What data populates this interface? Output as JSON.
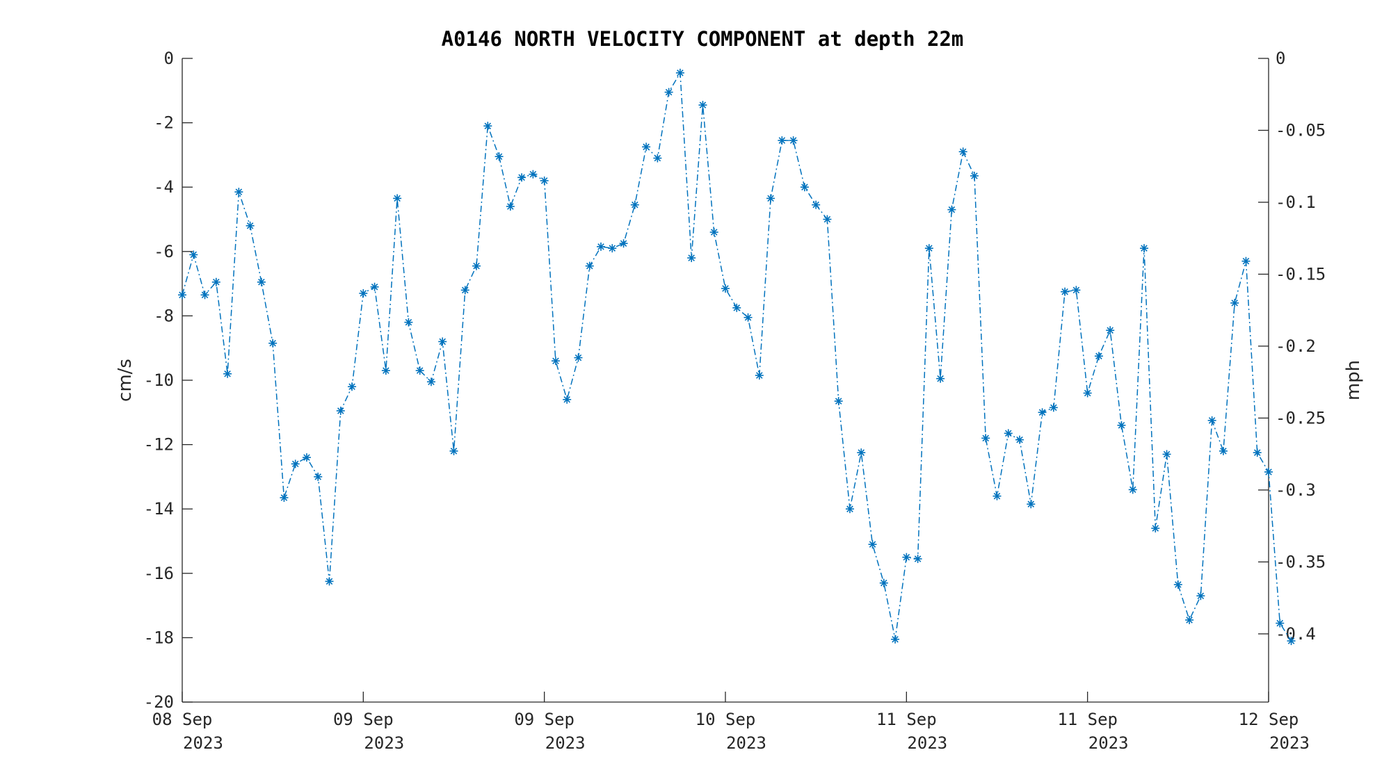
{
  "chart_data": {
    "type": "line",
    "title": "A0146 NORTH VELOCITY COMPONENT at depth 22m",
    "ylabel": "cm/s",
    "y2label": "mph",
    "ylim": [
      -20,
      0
    ],
    "y2lim": [
      -0.4474,
      0
    ],
    "yticks": [
      0,
      -2,
      -4,
      -6,
      -8,
      -10,
      -12,
      -14,
      -16,
      -18,
      -20
    ],
    "y2ticks": [
      0,
      -0.05,
      -0.1,
      -0.15,
      -0.2,
      -0.25,
      -0.3,
      -0.35,
      -0.4
    ],
    "y2tick_labels": [
      "0",
      "-0.05",
      "-0.1",
      "-0.15",
      "-0.2",
      "-0.25",
      "-0.3",
      "-0.35",
      "-0.4"
    ],
    "xlim": [
      0,
      96
    ],
    "xticks": [
      {
        "x": 0,
        "line1": "08 Sep",
        "line2": "2023"
      },
      {
        "x": 16,
        "line1": "09 Sep",
        "line2": "2023"
      },
      {
        "x": 32,
        "line1": "09 Sep",
        "line2": "2023"
      },
      {
        "x": 48,
        "line1": "10 Sep",
        "line2": "2023"
      },
      {
        "x": 64,
        "line1": "11 Sep",
        "line2": "2023"
      },
      {
        "x": 80,
        "line1": "11 Sep",
        "line2": "2023"
      },
      {
        "x": 96,
        "line1": "12 Sep",
        "line2": "2023"
      }
    ],
    "grid": false,
    "legend": "none",
    "series": [
      {
        "color": "#0072BD",
        "marker": "asterisk",
        "line_style": "dash-dot",
        "values": [
          -7.35,
          -6.1,
          -7.35,
          -6.95,
          -9.8,
          -4.15,
          -5.2,
          -6.95,
          -8.85,
          -13.65,
          -12.6,
          -12.4,
          -13.0,
          -16.25,
          -10.95,
          -10.2,
          -7.3,
          -7.1,
          -9.7,
          -4.35,
          -8.2,
          -9.7,
          -10.05,
          -8.8,
          -12.2,
          -7.2,
          -6.45,
          -2.1,
          -3.05,
          -4.6,
          -3.7,
          -3.6,
          -3.8,
          -9.4,
          -10.6,
          -9.3,
          -6.45,
          -5.85,
          -5.9,
          -5.75,
          -4.55,
          -2.75,
          -3.1,
          -1.05,
          -0.45,
          -6.2,
          -1.45,
          -5.4,
          -7.15,
          -7.75,
          -8.05,
          -9.85,
          -4.35,
          -2.55,
          -2.55,
          -4.0,
          -4.55,
          -5.0,
          -10.65,
          -14.0,
          -12.25,
          -15.1,
          -16.3,
          -18.05,
          -15.5,
          -15.55,
          -5.9,
          -9.95,
          -4.7,
          -2.9,
          -3.65,
          -11.8,
          -13.6,
          -11.65,
          -11.85,
          -13.85,
          -11.0,
          -10.85,
          -7.25,
          -7.2,
          -10.4,
          -9.25,
          -8.45,
          -11.4,
          -13.4,
          -5.9,
          -14.6,
          -12.3,
          -16.35,
          -17.45,
          -16.7,
          -11.25,
          -12.2,
          -7.6,
          -6.3,
          -12.25,
          -12.85,
          -17.55,
          -18.1
        ]
      }
    ]
  }
}
